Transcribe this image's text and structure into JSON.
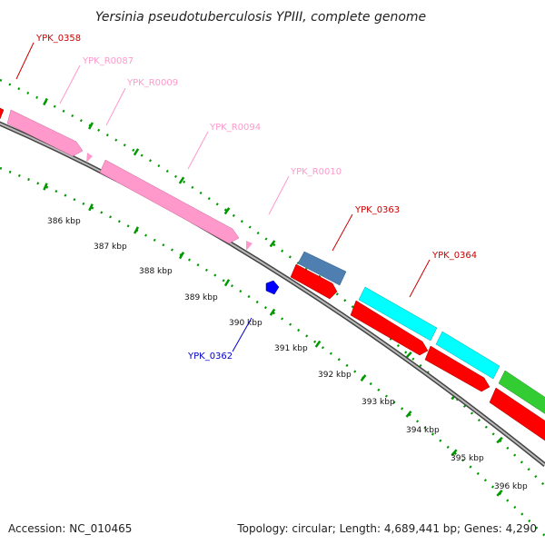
{
  "title": "Yersinia pseudotuberculosis YPIII, complete genome",
  "footer": {
    "accession": "Accession: NC_010465",
    "summary": "Topology: circular; Length: 4,689,441 bp; Genes: 4,290"
  },
  "colors": {
    "red_gene": "#ff0000",
    "pink_rna": "#ff99cc",
    "blue_gene": "#0000ff",
    "steel_gene": "#4f7fb0",
    "cyan_gene": "#00ffff",
    "green_gene": "#33cc33",
    "tick_green": "#009900",
    "backbone": "#888888"
  },
  "ticks": {
    "labels": [
      "386 kbp",
      "387 kbp",
      "388 kbp",
      "389 kbp",
      "390 kbp",
      "391 kbp",
      "392 kbp",
      "393 kbp",
      "394 kbp",
      "395 kbp",
      "396 kbp"
    ]
  },
  "genes": [
    {
      "id": "YPK_0358",
      "color": "#ff0000",
      "strand": "+",
      "type": "gene"
    },
    {
      "id": "YPK_R0087",
      "color": "#ff99cc",
      "strand": "+",
      "type": "rRNA"
    },
    {
      "id": "YPK_R0009",
      "color": "#ff99cc",
      "strand": "+",
      "type": "rRNA"
    },
    {
      "id": "YPK_R0094",
      "color": "#ff99cc",
      "strand": "+",
      "type": "rRNA"
    },
    {
      "id": "YPK_R0010",
      "color": "#ff99cc",
      "strand": "+",
      "type": "rRNA"
    },
    {
      "id": "YPK_0363",
      "color": "#ff0000",
      "strand": "+",
      "type": "gene"
    },
    {
      "id": "YPK_0364",
      "color": "#ff0000",
      "strand": "+",
      "type": "gene"
    },
    {
      "id": "YPK_0362",
      "color": "#0000ff",
      "strand": "-",
      "type": "gene"
    }
  ]
}
